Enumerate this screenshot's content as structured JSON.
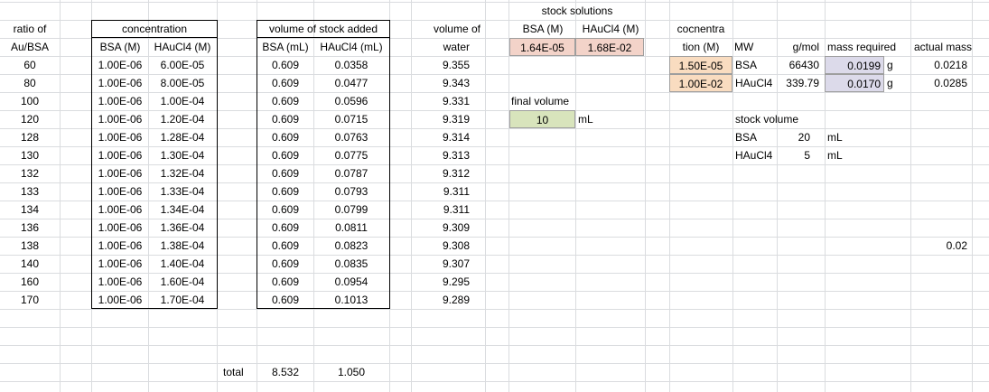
{
  "headers": {
    "ratio_line1": "ratio of",
    "ratio_line2": "Au/BSA",
    "concentration": "concentration",
    "conc_bsa": "BSA (M)",
    "conc_haucl4": "HAuCl4 (M)",
    "vol_stock": "volume of stock added",
    "vol_bsa": "BSA (mL)",
    "vol_haucl4": "HAuCl4 (mL)",
    "water_line1": "volume of",
    "water_line2": "water"
  },
  "rows": [
    {
      "ratio": "60",
      "bsa": "1.00E-06",
      "hau": "6.00E-05",
      "vbsa": "0.609",
      "vhau": "0.0358",
      "water": "9.355"
    },
    {
      "ratio": "80",
      "bsa": "1.00E-06",
      "hau": "8.00E-05",
      "vbsa": "0.609",
      "vhau": "0.0477",
      "water": "9.343"
    },
    {
      "ratio": "100",
      "bsa": "1.00E-06",
      "hau": "1.00E-04",
      "vbsa": "0.609",
      "vhau": "0.0596",
      "water": "9.331"
    },
    {
      "ratio": "120",
      "bsa": "1.00E-06",
      "hau": "1.20E-04",
      "vbsa": "0.609",
      "vhau": "0.0715",
      "water": "9.319"
    },
    {
      "ratio": "128",
      "bsa": "1.00E-06",
      "hau": "1.28E-04",
      "vbsa": "0.609",
      "vhau": "0.0763",
      "water": "9.314"
    },
    {
      "ratio": "130",
      "bsa": "1.00E-06",
      "hau": "1.30E-04",
      "vbsa": "0.609",
      "vhau": "0.0775",
      "water": "9.313"
    },
    {
      "ratio": "132",
      "bsa": "1.00E-06",
      "hau": "1.32E-04",
      "vbsa": "0.609",
      "vhau": "0.0787",
      "water": "9.312"
    },
    {
      "ratio": "133",
      "bsa": "1.00E-06",
      "hau": "1.33E-04",
      "vbsa": "0.609",
      "vhau": "0.0793",
      "water": "9.311"
    },
    {
      "ratio": "134",
      "bsa": "1.00E-06",
      "hau": "1.34E-04",
      "vbsa": "0.609",
      "vhau": "0.0799",
      "water": "9.311"
    },
    {
      "ratio": "136",
      "bsa": "1.00E-06",
      "hau": "1.36E-04",
      "vbsa": "0.609",
      "vhau": "0.0811",
      "water": "9.309"
    },
    {
      "ratio": "138",
      "bsa": "1.00E-06",
      "hau": "1.38E-04",
      "vbsa": "0.609",
      "vhau": "0.0823",
      "water": "9.308"
    },
    {
      "ratio": "140",
      "bsa": "1.00E-06",
      "hau": "1.40E-04",
      "vbsa": "0.609",
      "vhau": "0.0835",
      "water": "9.307"
    },
    {
      "ratio": "160",
      "bsa": "1.00E-06",
      "hau": "1.60E-04",
      "vbsa": "0.609",
      "vhau": "0.0954",
      "water": "9.295"
    },
    {
      "ratio": "170",
      "bsa": "1.00E-06",
      "hau": "1.70E-04",
      "vbsa": "0.609",
      "vhau": "0.1013",
      "water": "9.289"
    }
  ],
  "totals": {
    "label": "total",
    "vbsa": "8.532",
    "vhau": "1.050"
  },
  "stock": {
    "title": "stock solutions",
    "bsa_label": "BSA (M)",
    "hau_label": "HAuCl4 (M)",
    "bsa_value": "1.64E-05",
    "hau_value": "1.68E-02"
  },
  "final_volume": {
    "label": "final volume",
    "value": "10",
    "unit": "mL"
  },
  "mass": {
    "conc_line1": "cocnentra",
    "conc_line2": "tion (M)",
    "mw": "MW",
    "gmol": "g/mol",
    "mass_required": "mass required",
    "actual_mass": "actual mass",
    "items": [
      {
        "conc": "1.50E-05",
        "name": "BSA",
        "gmol": "66430",
        "required": "0.0199",
        "unit": "g",
        "actual": "0.0218"
      },
      {
        "conc": "1.00E-02",
        "name": "HAuCl4",
        "gmol": "339.79",
        "required": "0.0170",
        "unit": "g",
        "actual": "0.0285"
      }
    ]
  },
  "stock_volume": {
    "label": "stock volume",
    "items": [
      {
        "name": "BSA",
        "value": "20",
        "unit": "mL"
      },
      {
        "name": "HAuCl4",
        "value": "5",
        "unit": "mL"
      }
    ]
  },
  "stray_value": "0.02",
  "colors": {
    "pink": "#f3d3c9",
    "orange": "#f9dcc0",
    "green": "#d8e4bc",
    "lavender": "#dcdaea",
    "gridline": "#dadcdf"
  }
}
